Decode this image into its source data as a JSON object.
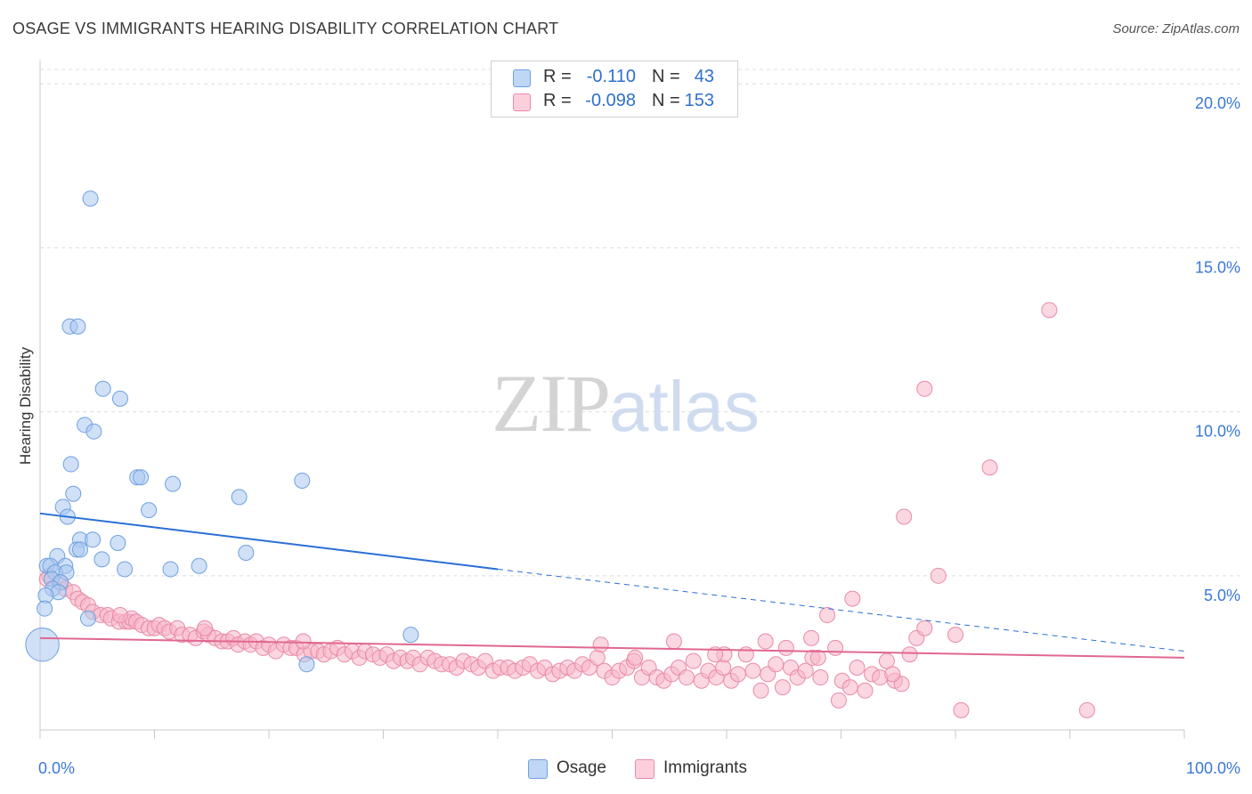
{
  "title": "OSAGE VS IMMIGRANTS HEARING DISABILITY CORRELATION CHART",
  "source": "Source: ZipAtlas.com",
  "watermark": {
    "zip": "ZIP",
    "atlas": "atlas"
  },
  "legend_top": [
    {
      "r_label": "R =",
      "r_value": "-0.110",
      "n_label": "N =",
      "n_value": "43",
      "color": "#a9c8f0"
    },
    {
      "r_label": "R =",
      "r_value": "-0.098",
      "n_label": "N =",
      "n_value": "153",
      "color": "#f7b6c8"
    }
  ],
  "legend_bottom": [
    {
      "label": "Osage",
      "color": "#a9c8f0"
    },
    {
      "label": "Immigrants",
      "color": "#f7b6c8"
    }
  ],
  "chart_data": {
    "type": "scatter",
    "title": "OSAGE VS IMMIGRANTS HEARING DISABILITY CORRELATION CHART",
    "xlabel": "",
    "ylabel": "Hearing Disability",
    "x_tick_labels": [
      "0.0%",
      "100.0%"
    ],
    "y_tick_labels": [
      "5.0%",
      "10.0%",
      "15.0%",
      "20.0%"
    ],
    "y_ticks": [
      5,
      10,
      15,
      20
    ],
    "xlim": [
      0,
      100
    ],
    "ylim": [
      0.3,
      20.6
    ],
    "grid": true,
    "legend_position": "top-center",
    "series": [
      {
        "name": "Osage",
        "color": "#6fa0e0",
        "fill": "#a9c8f0",
        "trend": {
          "x0": 0,
          "y0": 6.9,
          "x1": 40,
          "y1": 5.2,
          "dashed_to_x": 100,
          "dashed_to_y": 2.7,
          "color": "#2a6fd6"
        },
        "points": [
          [
            4.4,
            16.5
          ],
          [
            2.6,
            12.6
          ],
          [
            3.3,
            12.6
          ],
          [
            5.5,
            10.7
          ],
          [
            7.0,
            10.4
          ],
          [
            3.9,
            9.6
          ],
          [
            4.7,
            9.4
          ],
          [
            2.7,
            8.4
          ],
          [
            8.5,
            8.0
          ],
          [
            8.8,
            8.0
          ],
          [
            11.6,
            7.8
          ],
          [
            22.9,
            7.9
          ],
          [
            2.9,
            7.5
          ],
          [
            17.4,
            7.4
          ],
          [
            2.0,
            7.1
          ],
          [
            9.5,
            7.0
          ],
          [
            2.4,
            6.8
          ],
          [
            3.5,
            6.1
          ],
          [
            4.6,
            6.1
          ],
          [
            6.8,
            6.0
          ],
          [
            3.2,
            5.8
          ],
          [
            3.5,
            5.8
          ],
          [
            18.0,
            5.7
          ],
          [
            1.5,
            5.6
          ],
          [
            5.4,
            5.5
          ],
          [
            0.6,
            5.3
          ],
          [
            0.9,
            5.3
          ],
          [
            2.2,
            5.3
          ],
          [
            13.9,
            5.3
          ],
          [
            7.4,
            5.2
          ],
          [
            11.4,
            5.2
          ],
          [
            1.3,
            5.1
          ],
          [
            2.3,
            5.1
          ],
          [
            1.0,
            4.9
          ],
          [
            1.8,
            4.8
          ],
          [
            1.1,
            4.6
          ],
          [
            1.6,
            4.5
          ],
          [
            0.5,
            4.4
          ],
          [
            0.4,
            4.0
          ],
          [
            4.2,
            3.7
          ],
          [
            32.4,
            3.2
          ],
          [
            23.3,
            2.3
          ],
          [
            0.2,
            2.9
          ]
        ],
        "sizes": [
          1,
          1,
          1,
          1,
          1,
          1,
          1,
          1,
          1,
          1,
          1,
          1,
          1,
          1,
          1,
          1,
          1,
          1,
          1,
          1,
          1,
          1,
          1,
          1,
          1,
          1,
          1,
          1,
          1,
          1,
          1,
          1,
          1,
          1,
          1,
          1,
          1,
          1,
          1,
          1,
          1,
          1,
          2.2
        ]
      },
      {
        "name": "Immigrants",
        "color": "#e98aa8",
        "fill": "#f7b6c8",
        "trend": {
          "x0": 0,
          "y0": 3.1,
          "x1": 100,
          "y1": 2.5,
          "color": "#e06890"
        },
        "points": [
          [
            88.2,
            13.1
          ],
          [
            77.3,
            10.7
          ],
          [
            83.0,
            8.3
          ],
          [
            75.5,
            6.8
          ],
          [
            78.5,
            5.0
          ],
          [
            0.8,
            5.0
          ],
          [
            1.7,
            4.8
          ],
          [
            2.2,
            4.6
          ],
          [
            2.9,
            4.5
          ],
          [
            3.3,
            4.3
          ],
          [
            3.7,
            4.2
          ],
          [
            4.2,
            4.1
          ],
          [
            4.6,
            3.9
          ],
          [
            5.3,
            3.8
          ],
          [
            5.9,
            3.8
          ],
          [
            6.2,
            3.7
          ],
          [
            6.9,
            3.6
          ],
          [
            7.5,
            3.6
          ],
          [
            7.8,
            3.6
          ],
          [
            8.0,
            3.7
          ],
          [
            8.4,
            3.6
          ],
          [
            8.9,
            3.5
          ],
          [
            9.5,
            3.4
          ],
          [
            10.0,
            3.4
          ],
          [
            10.4,
            3.5
          ],
          [
            10.9,
            3.4
          ],
          [
            11.3,
            3.3
          ],
          [
            12.0,
            3.4
          ],
          [
            12.4,
            3.2
          ],
          [
            13.1,
            3.2
          ],
          [
            13.6,
            3.1
          ],
          [
            14.3,
            3.3
          ],
          [
            14.7,
            3.2
          ],
          [
            15.3,
            3.1
          ],
          [
            15.9,
            3.0
          ],
          [
            16.4,
            3.0
          ],
          [
            16.9,
            3.1
          ],
          [
            17.3,
            2.9
          ],
          [
            17.9,
            3.0
          ],
          [
            18.4,
            2.9
          ],
          [
            18.9,
            3.0
          ],
          [
            19.5,
            2.8
          ],
          [
            20.0,
            2.9
          ],
          [
            20.6,
            2.7
          ],
          [
            21.3,
            2.9
          ],
          [
            21.9,
            2.8
          ],
          [
            22.4,
            2.8
          ],
          [
            23.1,
            2.6
          ],
          [
            23.7,
            2.7
          ],
          [
            24.3,
            2.7
          ],
          [
            24.8,
            2.6
          ],
          [
            25.4,
            2.7
          ],
          [
            26.0,
            2.8
          ],
          [
            26.6,
            2.6
          ],
          [
            27.3,
            2.7
          ],
          [
            27.9,
            2.5
          ],
          [
            28.4,
            2.7
          ],
          [
            29.1,
            2.6
          ],
          [
            29.7,
            2.5
          ],
          [
            30.3,
            2.6
          ],
          [
            30.9,
            2.4
          ],
          [
            31.5,
            2.5
          ],
          [
            32.1,
            2.4
          ],
          [
            32.6,
            2.5
          ],
          [
            33.2,
            2.3
          ],
          [
            33.9,
            2.5
          ],
          [
            34.5,
            2.4
          ],
          [
            35.1,
            2.3
          ],
          [
            35.8,
            2.3
          ],
          [
            36.4,
            2.2
          ],
          [
            37.0,
            2.4
          ],
          [
            37.7,
            2.3
          ],
          [
            38.3,
            2.2
          ],
          [
            38.9,
            2.4
          ],
          [
            39.6,
            2.1
          ],
          [
            40.2,
            2.2
          ],
          [
            40.9,
            2.2
          ],
          [
            41.5,
            2.1
          ],
          [
            42.2,
            2.2
          ],
          [
            42.8,
            2.3
          ],
          [
            43.5,
            2.1
          ],
          [
            44.1,
            2.2
          ],
          [
            44.8,
            2.0
          ],
          [
            45.4,
            2.1
          ],
          [
            46.1,
            2.2
          ],
          [
            46.7,
            2.1
          ],
          [
            47.4,
            2.3
          ],
          [
            48.0,
            2.2
          ],
          [
            48.7,
            2.5
          ],
          [
            49.3,
            2.1
          ],
          [
            50.0,
            1.9
          ],
          [
            50.6,
            2.1
          ],
          [
            51.3,
            2.2
          ],
          [
            51.9,
            2.4
          ],
          [
            52.6,
            1.9
          ],
          [
            53.2,
            2.2
          ],
          [
            53.9,
            1.9
          ],
          [
            54.5,
            1.8
          ],
          [
            55.2,
            2.0
          ],
          [
            55.8,
            2.2
          ],
          [
            56.5,
            1.9
          ],
          [
            57.1,
            2.4
          ],
          [
            57.8,
            1.8
          ],
          [
            58.4,
            2.1
          ],
          [
            59.1,
            1.9
          ],
          [
            59.7,
            2.2
          ],
          [
            60.4,
            1.8
          ],
          [
            61.0,
            2.0
          ],
          [
            61.7,
            2.6
          ],
          [
            62.3,
            2.1
          ],
          [
            63.0,
            1.5
          ],
          [
            63.6,
            2.0
          ],
          [
            64.3,
            2.3
          ],
          [
            64.9,
            1.6
          ],
          [
            65.6,
            2.2
          ],
          [
            66.2,
            1.9
          ],
          [
            66.9,
            2.1
          ],
          [
            67.5,
            2.5
          ],
          [
            68.2,
            1.9
          ],
          [
            68.8,
            3.8
          ],
          [
            69.5,
            2.8
          ],
          [
            70.1,
            1.8
          ],
          [
            70.8,
            1.6
          ],
          [
            71.4,
            2.2
          ],
          [
            72.1,
            1.5
          ],
          [
            72.7,
            2.0
          ],
          [
            73.4,
            1.9
          ],
          [
            74.0,
            2.4
          ],
          [
            74.7,
            1.8
          ],
          [
            75.3,
            1.7
          ],
          [
            76.0,
            2.6
          ],
          [
            76.6,
            3.1
          ],
          [
            77.3,
            3.4
          ],
          [
            55.4,
            3.0
          ],
          [
            63.4,
            3.0
          ],
          [
            80.5,
            0.9
          ],
          [
            91.5,
            0.9
          ],
          [
            69.8,
            1.2
          ],
          [
            52.0,
            2.5
          ],
          [
            49.0,
            2.9
          ],
          [
            59.8,
            2.6
          ],
          [
            65.2,
            2.8
          ],
          [
            67.4,
            3.1
          ],
          [
            71.0,
            4.3
          ],
          [
            80.0,
            3.2
          ],
          [
            59.0,
            2.6
          ],
          [
            68.0,
            2.5
          ],
          [
            74.5,
            2.0
          ],
          [
            0.6,
            4.9
          ],
          [
            14.4,
            3.4
          ],
          [
            7.0,
            3.8
          ],
          [
            23.0,
            3.0
          ]
        ]
      }
    ]
  }
}
